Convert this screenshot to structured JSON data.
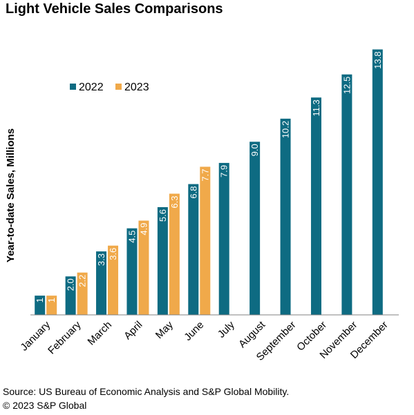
{
  "title": "Light Vehicle Sales Comparisons",
  "source": "Source: US Bureau of Economic Analysis and S&P Global Mobility.",
  "copyright": "© 2023 S&P Global",
  "colors": {
    "2022": "#0e6b82",
    "2023": "#f0a94a",
    "axis": "#808080"
  },
  "chart_data": {
    "type": "bar",
    "title": "Light Vehicle Sales Comparisons",
    "xlabel": "",
    "ylabel": "Year-to-date Sales, Millions",
    "ylim": [
      0,
      14
    ],
    "grid": false,
    "legend_position": "top-left",
    "categories": [
      "January",
      "February",
      "March",
      "April",
      "May",
      "June",
      "July",
      "August",
      "September",
      "October",
      "November",
      "December"
    ],
    "series": [
      {
        "name": "2022",
        "values": [
          1,
          2.0,
          3.3,
          4.5,
          5.6,
          6.8,
          7.9,
          9.0,
          10.2,
          11.3,
          12.5,
          13.8
        ],
        "labels": [
          "1",
          "2.0",
          "3.3",
          "4.5",
          "5.6",
          "6.8",
          "7.9",
          "9.0",
          "10.2",
          "11.3",
          "12.5",
          "13.8"
        ]
      },
      {
        "name": "2023",
        "values": [
          1,
          2.2,
          3.6,
          4.9,
          6.3,
          7.7,
          null,
          null,
          null,
          null,
          null,
          null
        ],
        "labels": [
          "1",
          "2.2",
          "3.6",
          "4.9",
          "6.3",
          "7.7",
          null,
          null,
          null,
          null,
          null,
          null
        ]
      }
    ]
  }
}
